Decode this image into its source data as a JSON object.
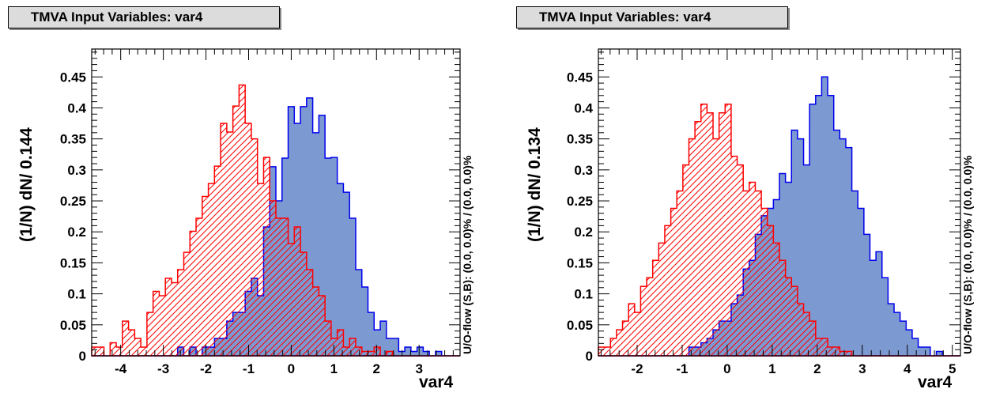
{
  "chart_data": [
    {
      "type": "bar",
      "title": "TMVA Input Variables: var4",
      "xlabel": "var4",
      "ylabel": "(1/N) dN/ 0.144",
      "overflow_label": "U/O-flow (S,B): (0.0, 0.0)% / (0.0, 0.0)%",
      "xlim": [
        -4.68,
        3.96
      ],
      "ylim": [
        0,
        0.495
      ],
      "bin_width": 0.144,
      "xticks": [
        -4,
        -3,
        -2,
        -1,
        0,
        1,
        2,
        3
      ],
      "yticks": [
        0,
        0.05,
        0.1,
        0.15,
        0.2,
        0.25,
        0.3,
        0.35,
        0.4,
        0.45
      ],
      "ytick_labels": [
        "0",
        "0.05",
        "0.1",
        "0.15",
        "0.2",
        "0.25",
        "0.3",
        "0.35",
        "0.4",
        "0.45"
      ],
      "grid": false,
      "series": [
        {
          "role": "signal",
          "style": "filled",
          "color": "#7d99d1",
          "edge": "#0000ee",
          "values": [
            0,
            0,
            0,
            0,
            0,
            0,
            0,
            0,
            0,
            0,
            0,
            0,
            0,
            0,
            0.014,
            0,
            0.014,
            0,
            0.014,
            0.014,
            0.028,
            0.028,
            0.056,
            0.07,
            0.07,
            0.104,
            0.125,
            0.097,
            0.208,
            0.305,
            0.25,
            0.319,
            0.402,
            0.375,
            0.402,
            0.416,
            0.36,
            0.388,
            0.319,
            0.32,
            0.278,
            0.264,
            0.222,
            0.139,
            0.111,
            0.07,
            0.042,
            0.056,
            0.028,
            0.028,
            0.007,
            0.014,
            0.007,
            0.014,
            0.007,
            0,
            0.007,
            0,
            0,
            0
          ]
        },
        {
          "role": "background",
          "style": "hatched",
          "color": "#ff0000",
          "edge": "#ff0000",
          "values": [
            0.014,
            0.014,
            0,
            0.021,
            0.014,
            0.056,
            0.042,
            0.028,
            0.014,
            0.07,
            0.104,
            0.097,
            0.125,
            0.118,
            0.139,
            0.167,
            0.201,
            0.222,
            0.257,
            0.278,
            0.306,
            0.375,
            0.361,
            0.403,
            0.437,
            0.375,
            0.35,
            0.278,
            0.32,
            0.25,
            0.222,
            0.222,
            0.181,
            0.208,
            0.167,
            0.139,
            0.111,
            0.097,
            0.056,
            0.028,
            0.042,
            0.014,
            0.028,
            0.014,
            0.007,
            0.007,
            0.014,
            0,
            0.007,
            0,
            0,
            0,
            0,
            0,
            0,
            0,
            0,
            0,
            0,
            0
          ]
        }
      ]
    },
    {
      "type": "bar",
      "title": "TMVA Input Variables: var4",
      "xlabel": "var4",
      "ylabel": "(1/N) dN/ 0.134",
      "overflow_label": "U/O-flow (S,B): (0.0, 0.0)% / (0.0, 0.0)%",
      "xlim": [
        -2.86,
        5.18
      ],
      "ylim": [
        0,
        0.495
      ],
      "bin_width": 0.134,
      "xticks": [
        -2,
        -1,
        0,
        1,
        2,
        3,
        4,
        5
      ],
      "yticks": [
        0,
        0.05,
        0.1,
        0.15,
        0.2,
        0.25,
        0.3,
        0.35,
        0.4,
        0.45
      ],
      "ytick_labels": [
        "0",
        "0.05",
        "0.1",
        "0.15",
        "0.2",
        "0.25",
        "0.3",
        "0.35",
        "0.4",
        "0.45"
      ],
      "grid": false,
      "series": [
        {
          "role": "signal",
          "style": "filled",
          "color": "#7d99d1",
          "edge": "#0000ee",
          "values": [
            0,
            0,
            0,
            0,
            0,
            0,
            0,
            0,
            0,
            0,
            0,
            0,
            0,
            0,
            0,
            0.014,
            0.014,
            0.021,
            0.028,
            0.042,
            0.056,
            0.056,
            0.084,
            0.098,
            0.14,
            0.154,
            0.196,
            0.226,
            0.238,
            0.252,
            0.294,
            0.28,
            0.364,
            0.35,
            0.308,
            0.406,
            0.42,
            0.45,
            0.42,
            0.364,
            0.35,
            0.336,
            0.266,
            0.238,
            0.196,
            0.154,
            0.168,
            0.126,
            0.084,
            0.07,
            0.056,
            0.042,
            0.028,
            0.014,
            0.014,
            0,
            0.007,
            0,
            0,
            0
          ]
        },
        {
          "role": "background",
          "style": "hatched",
          "color": "#ff0000",
          "edge": "#ff0000",
          "values": [
            0.014,
            0.014,
            0.028,
            0.042,
            0.056,
            0.084,
            0.07,
            0.112,
            0.126,
            0.154,
            0.182,
            0.21,
            0.238,
            0.266,
            0.308,
            0.35,
            0.378,
            0.406,
            0.392,
            0.35,
            0.392,
            0.406,
            0.322,
            0.308,
            0.266,
            0.28,
            0.266,
            0.238,
            0.21,
            0.182,
            0.154,
            0.126,
            0.112,
            0.084,
            0.07,
            0.056,
            0.028,
            0.028,
            0.014,
            0.014,
            0.007,
            0.007,
            0,
            0,
            0,
            0,
            0,
            0,
            0,
            0,
            0,
            0,
            0,
            0,
            0,
            0,
            0,
            0,
            0,
            0
          ]
        }
      ]
    }
  ]
}
